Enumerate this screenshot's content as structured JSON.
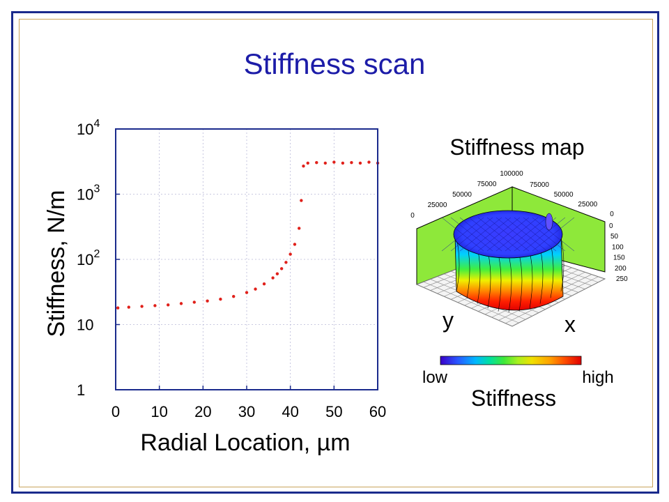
{
  "slide": {
    "title": "Stiffness scan"
  },
  "chart_data": [
    {
      "type": "scatter",
      "xlabel": "Radial Location, µm",
      "ylabel": "Stiffness, N/m",
      "xlim": [
        0,
        60
      ],
      "ylim": [
        1,
        10000
      ],
      "yscale": "log",
      "grid": true,
      "series_color": "#e0201a",
      "x_ticks": [
        "0",
        "10",
        "20",
        "30",
        "40",
        "50",
        "60"
      ],
      "y_ticks": [
        {
          "value": 1,
          "base": "1",
          "exp": ""
        },
        {
          "value": 10,
          "base": "10",
          "exp": ""
        },
        {
          "value": 100,
          "base": "10",
          "exp": "2"
        },
        {
          "value": 1000,
          "base": "10",
          "exp": "3"
        },
        {
          "value": 10000,
          "base": "10",
          "exp": "4"
        }
      ],
      "x": [
        0.5,
        3,
        6,
        9,
        12,
        15,
        18,
        21,
        24,
        27,
        30,
        32,
        34,
        36,
        37,
        38,
        39,
        40,
        41,
        42,
        42.5,
        43,
        44,
        46,
        48,
        50,
        52,
        54,
        56,
        58,
        60
      ],
      "y": [
        18,
        18.5,
        19,
        19.5,
        20,
        21,
        22,
        23,
        24.5,
        27,
        31,
        35,
        42,
        52,
        60,
        72,
        90,
        120,
        170,
        300,
        800,
        2700,
        3000,
        3050,
        3000,
        3100,
        3000,
        3050,
        3000,
        3100,
        3000
      ]
    },
    {
      "type": "heatmap",
      "title": "Stiffness map",
      "xlabel": "x",
      "ylabel": "y",
      "colorbar_label": "Stiffness",
      "colorbar_low": "low",
      "colorbar_high": "high",
      "top_ticks_left": [
        "0",
        "25000",
        "50000",
        "75000",
        "100000"
      ],
      "top_ticks_right": [
        "75000",
        "50000",
        "25000",
        "0"
      ],
      "right_ticks": [
        "0",
        "50",
        "100",
        "150",
        "200",
        "250"
      ],
      "colorscale": [
        "#3a00c8",
        "#2a55ff",
        "#00b8ff",
        "#00e0a0",
        "#3ee83a",
        "#a8f020",
        "#f0e000",
        "#ffa000",
        "#ff5000",
        "#e00000"
      ]
    }
  ]
}
